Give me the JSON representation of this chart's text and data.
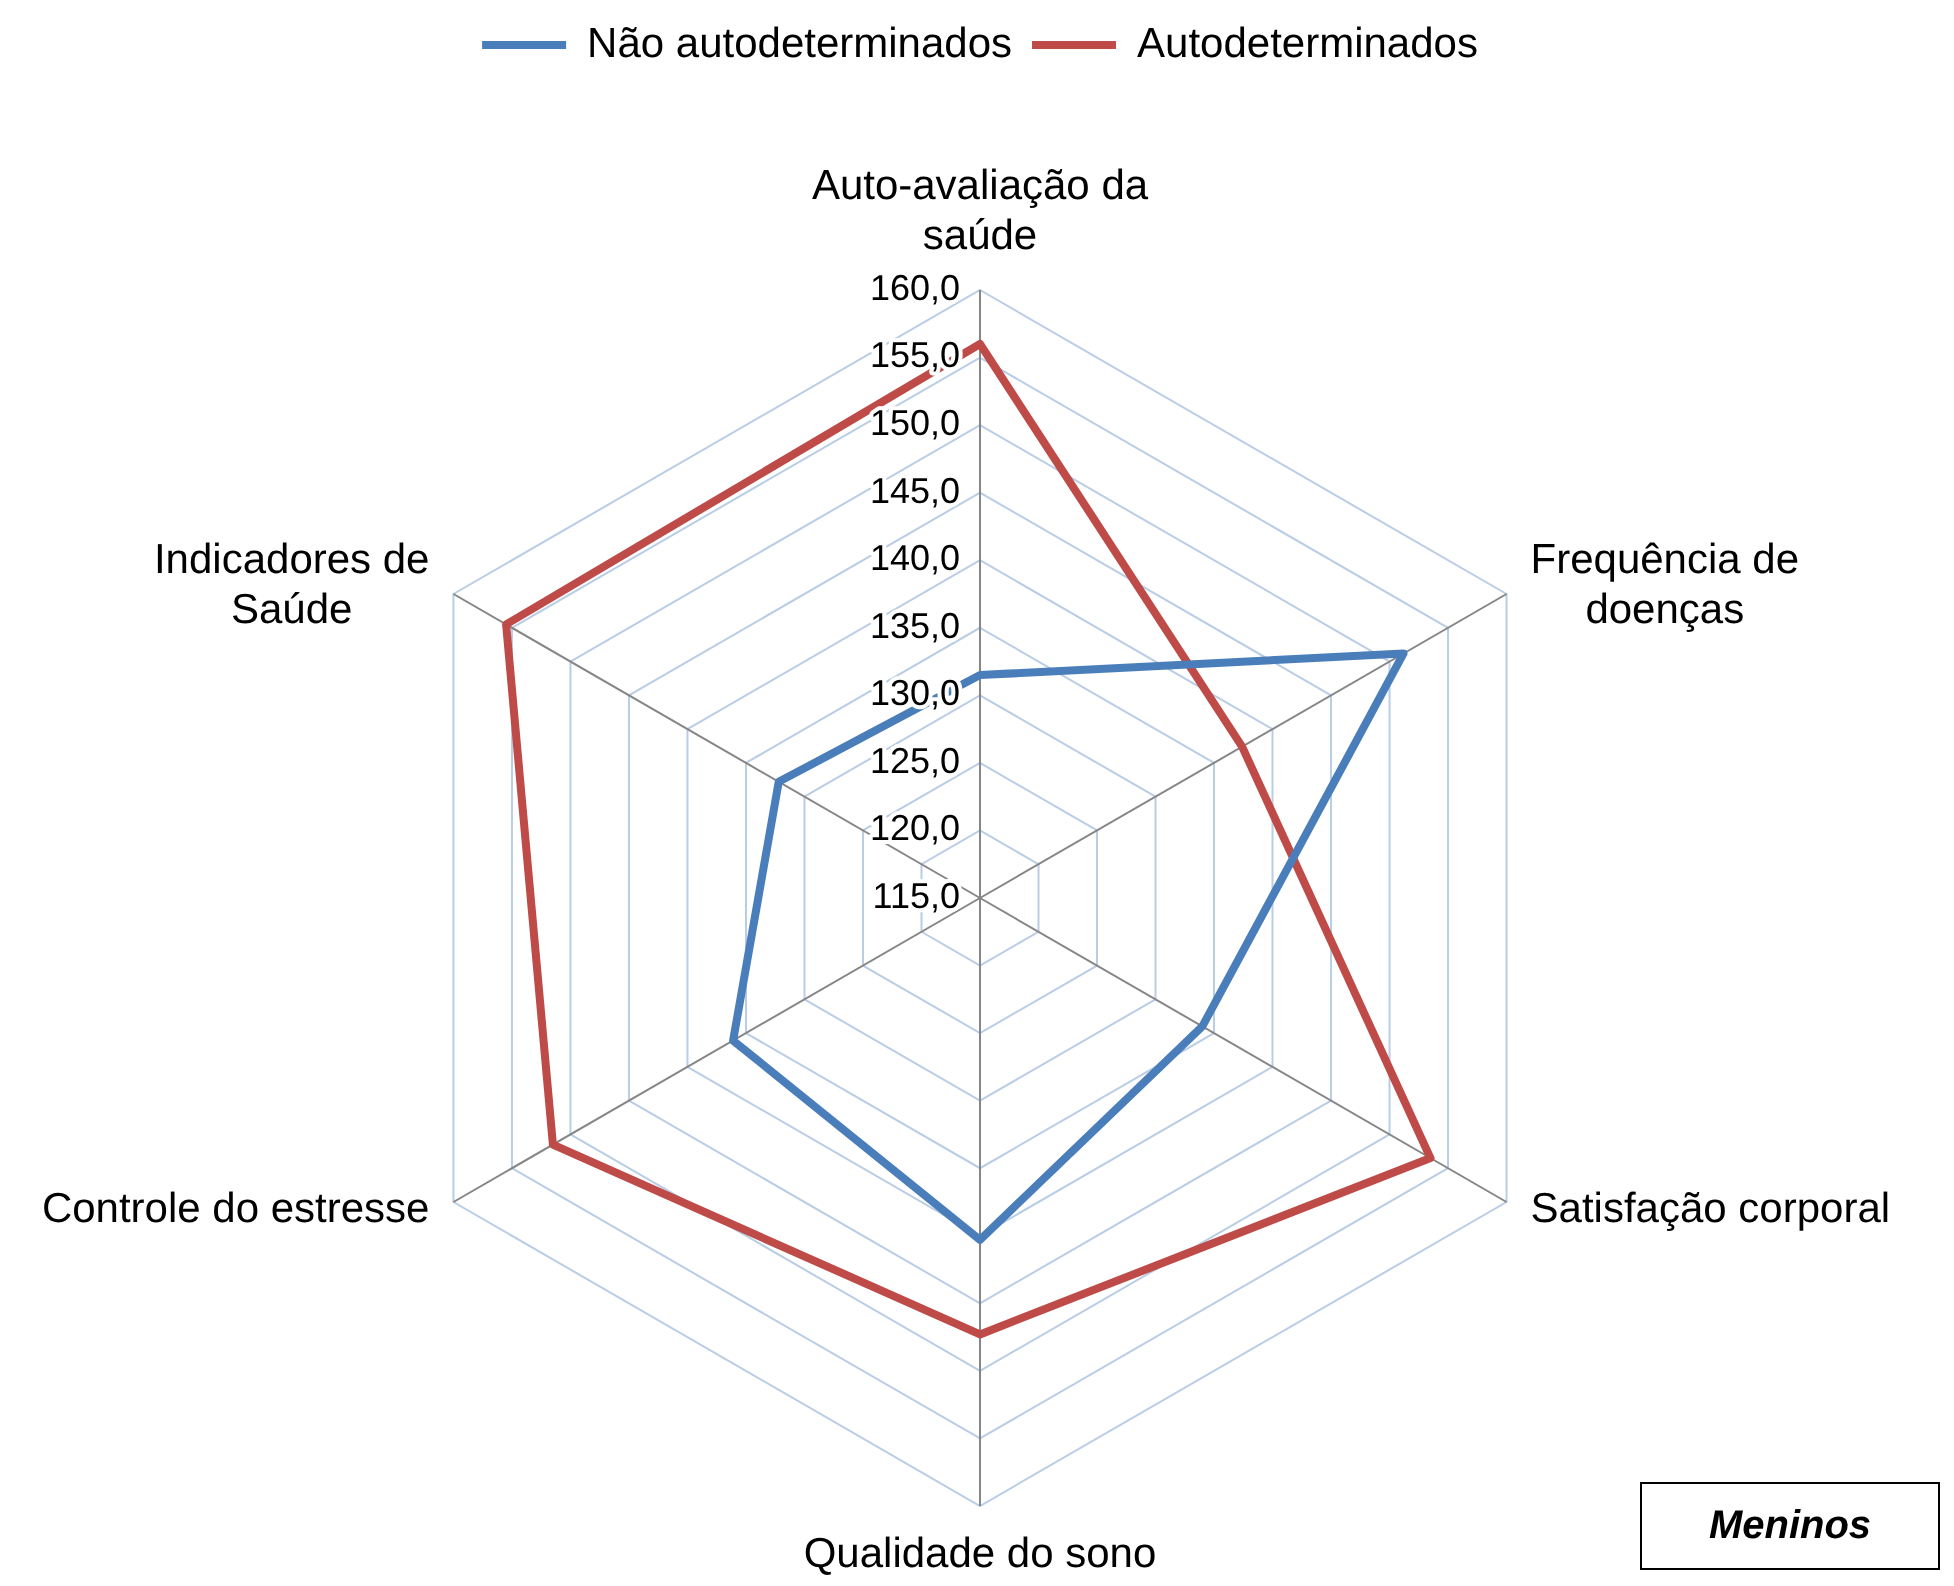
{
  "chart_data": {
    "type": "radar",
    "categories": [
      "Auto-avaliação da saúde",
      "Frequência de doenças",
      "Satisfação corporal",
      "Qualidade do sono",
      "Controle do estresse",
      "Indicadores de Saúde"
    ],
    "series": [
      {
        "name": "Não autodeterminados",
        "color": "#4a7ebb",
        "values": [
          131.5,
          151.2,
          134.0,
          140.3,
          136.1,
          132.2
        ]
      },
      {
        "name": "Autodeterminados",
        "color": "#be4b48",
        "values": [
          156.0,
          137.4,
          153.5,
          147.3,
          151.5,
          155.5
        ]
      }
    ],
    "ylim": [
      115,
      160
    ],
    "yticks": [
      {
        "value": 115,
        "label": "115,0"
      },
      {
        "value": 120,
        "label": "120,0"
      },
      {
        "value": 125,
        "label": "125,0"
      },
      {
        "value": 130,
        "label": "130,0"
      },
      {
        "value": 135,
        "label": "135,0"
      },
      {
        "value": 140,
        "label": "140,0"
      },
      {
        "value": 145,
        "label": "145,0"
      },
      {
        "value": 150,
        "label": "150,0"
      },
      {
        "value": 155,
        "label": "155,0"
      },
      {
        "value": 160,
        "label": "160,0"
      }
    ],
    "grid": true,
    "legend": "top",
    "marker": "none",
    "annotations": [
      "Meninos"
    ]
  }
}
